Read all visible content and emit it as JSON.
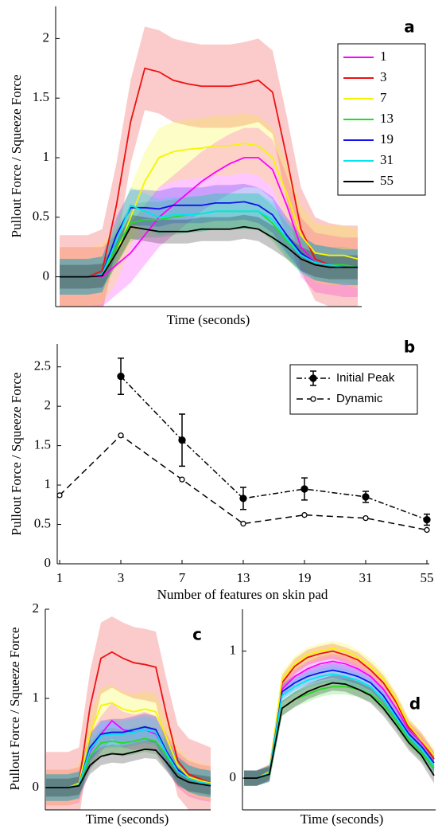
{
  "chart_data": [
    {
      "type": "timeseries",
      "label": "a",
      "xlabel": "Time (seconds)",
      "ylabel": "Pullout Force / Squeeze Force",
      "ylim": [
        -0.25,
        2.27
      ],
      "yticks": [
        0,
        0.5,
        1,
        1.5,
        2
      ],
      "legend": "upper right",
      "series": [
        {
          "name": "1",
          "color": "#ff00ff",
          "error": 0.25,
          "values": [
            0,
            0,
            0,
            0,
            0.1,
            0.2,
            0.35,
            0.5,
            0.6,
            0.7,
            0.8,
            0.88,
            0.95,
            1.0,
            1.0,
            0.9,
            0.6,
            0.25,
            0.12,
            0.1,
            0.08,
            0.08
          ]
        },
        {
          "name": "3",
          "color": "#ee1111",
          "error": 0.35,
          "values": [
            0,
            0,
            0,
            0.05,
            0.6,
            1.3,
            1.75,
            1.72,
            1.65,
            1.62,
            1.6,
            1.6,
            1.6,
            1.62,
            1.65,
            1.55,
            1.0,
            0.4,
            0.15,
            0.1,
            0.08,
            0.08
          ]
        },
        {
          "name": "7",
          "color": "#f5f500",
          "error": 0.25,
          "values": [
            0,
            0,
            0,
            0.02,
            0.2,
            0.5,
            0.8,
            1.0,
            1.05,
            1.07,
            1.08,
            1.1,
            1.1,
            1.12,
            1.1,
            1.0,
            0.7,
            0.35,
            0.2,
            0.18,
            0.18,
            0.15
          ]
        },
        {
          "name": "13",
          "color": "#22dd22",
          "error": 0.15,
          "values": [
            0,
            0,
            0,
            0.02,
            0.25,
            0.45,
            0.48,
            0.48,
            0.5,
            0.52,
            0.53,
            0.55,
            0.55,
            0.55,
            0.55,
            0.45,
            0.3,
            0.18,
            0.12,
            0.1,
            0.1,
            0.08
          ]
        },
        {
          "name": "19",
          "color": "#1111ee",
          "error": 0.15,
          "values": [
            0,
            0,
            0,
            0.02,
            0.35,
            0.58,
            0.58,
            0.57,
            0.6,
            0.6,
            0.6,
            0.62,
            0.62,
            0.63,
            0.6,
            0.52,
            0.35,
            0.2,
            0.12,
            0.1,
            0.08,
            0.08
          ]
        },
        {
          "name": "31",
          "color": "#00e5ee",
          "error": 0.15,
          "values": [
            0,
            0,
            0,
            0.02,
            0.3,
            0.6,
            0.55,
            0.5,
            0.52,
            0.52,
            0.53,
            0.55,
            0.55,
            0.55,
            0.55,
            0.48,
            0.32,
            0.18,
            0.12,
            0.1,
            0.08,
            0.08
          ]
        },
        {
          "name": "55",
          "color": "#000000",
          "error": 0.1,
          "values": [
            0,
            0,
            0,
            0.01,
            0.2,
            0.42,
            0.4,
            0.38,
            0.38,
            0.38,
            0.4,
            0.4,
            0.4,
            0.42,
            0.4,
            0.33,
            0.25,
            0.15,
            0.1,
            0.08,
            0.08,
            0.08
          ]
        }
      ]
    },
    {
      "type": "errorline",
      "label": "b",
      "xlabel": "Number of features on skin pad",
      "ylabel": "Pullout Force / Squeeze Force",
      "categories": [
        "1",
        "3",
        "7",
        "13",
        "19",
        "31",
        "55"
      ],
      "ylim": [
        0,
        2.79
      ],
      "yticks": [
        0,
        0.5,
        1,
        1.5,
        2,
        2.5
      ],
      "legend": "upper right",
      "series": [
        {
          "name": "Initial Peak",
          "color": "#000000",
          "line_style": "dash-dot",
          "marker": "filled",
          "values": [
            null,
            2.38,
            1.57,
            0.83,
            0.95,
            0.85,
            0.56
          ],
          "errors": [
            null,
            0.23,
            0.33,
            0.14,
            0.14,
            0.07,
            0.07
          ]
        },
        {
          "name": "Dynamic",
          "color": "#000000",
          "line_style": "dashed",
          "marker": "open",
          "values": [
            0.87,
            1.63,
            1.07,
            0.51,
            0.62,
            0.58,
            0.43
          ]
        }
      ]
    },
    {
      "type": "timeseries",
      "label": "c",
      "xlabel": "Time (seconds)",
      "ylabel": "Pullout Force / Squeeze Force",
      "ylim": [
        -0.25,
        2.0
      ],
      "yticks": [
        0,
        1,
        2
      ],
      "series": [
        {
          "color": "#ff00ff",
          "error": 0.2,
          "values": [
            0,
            0,
            0,
            0.03,
            0.4,
            0.6,
            0.75,
            0.65,
            0.62,
            0.65,
            0.6,
            0.4,
            0.2,
            0.1,
            0.06,
            0.04
          ]
        },
        {
          "color": "#ee1111",
          "error": 0.4,
          "values": [
            0,
            0,
            0,
            0.05,
            0.9,
            1.45,
            1.52,
            1.45,
            1.4,
            1.38,
            1.35,
            0.8,
            0.3,
            0.15,
            0.1,
            0.05
          ]
        },
        {
          "color": "#f5f500",
          "error": 0.2,
          "values": [
            0,
            0,
            0,
            0.05,
            0.6,
            0.92,
            0.95,
            0.88,
            0.85,
            0.88,
            0.85,
            0.55,
            0.25,
            0.12,
            0.08,
            0.05
          ]
        },
        {
          "color": "#22dd22",
          "error": 0.15,
          "values": [
            0,
            0,
            0,
            0.03,
            0.35,
            0.5,
            0.52,
            0.5,
            0.52,
            0.55,
            0.52,
            0.35,
            0.18,
            0.1,
            0.06,
            0.04
          ]
        },
        {
          "color": "#1111ee",
          "error": 0.15,
          "values": [
            0,
            0,
            0,
            0.03,
            0.45,
            0.6,
            0.62,
            0.62,
            0.65,
            0.68,
            0.65,
            0.4,
            0.2,
            0.1,
            0.06,
            0.04
          ]
        },
        {
          "color": "#00e5ee",
          "error": 0.15,
          "values": [
            0,
            0,
            0,
            0.03,
            0.42,
            0.58,
            0.6,
            0.6,
            0.62,
            0.65,
            0.62,
            0.38,
            0.18,
            0.1,
            0.06,
            0.04
          ]
        },
        {
          "color": "#000000",
          "error": 0.1,
          "values": [
            0,
            0,
            0,
            0.02,
            0.25,
            0.35,
            0.38,
            0.37,
            0.4,
            0.43,
            0.42,
            0.28,
            0.12,
            0.06,
            0.04,
            0.02
          ]
        }
      ]
    },
    {
      "type": "timeseries",
      "label": "d",
      "xlabel": "Time (seconds)",
      "ylim": [
        -0.25,
        1.33
      ],
      "yticks": [
        0,
        1
      ],
      "series": [
        {
          "color": "#ff00ff",
          "error": 0.06,
          "values": [
            0,
            0,
            0.04,
            0.7,
            0.8,
            0.86,
            0.9,
            0.92,
            0.9,
            0.86,
            0.8,
            0.7,
            0.55,
            0.38,
            0.28,
            0.15
          ]
        },
        {
          "color": "#ee1111",
          "error": 0.06,
          "values": [
            0,
            0,
            0.05,
            0.75,
            0.88,
            0.95,
            0.98,
            1.0,
            0.97,
            0.93,
            0.85,
            0.75,
            0.6,
            0.4,
            0.3,
            0.15
          ]
        },
        {
          "color": "#f5f500",
          "error": 0.06,
          "values": [
            0,
            0,
            0.05,
            0.78,
            0.9,
            0.97,
            1.0,
            1.02,
            1.0,
            0.95,
            0.88,
            0.78,
            0.62,
            0.42,
            0.3,
            0.18
          ]
        },
        {
          "color": "#22dd22",
          "error": 0.06,
          "values": [
            0,
            0,
            0.03,
            0.55,
            0.62,
            0.66,
            0.7,
            0.72,
            0.72,
            0.7,
            0.66,
            0.58,
            0.45,
            0.3,
            0.2,
            0.08
          ]
        },
        {
          "color": "#1111ee",
          "error": 0.06,
          "values": [
            0,
            0,
            0.04,
            0.68,
            0.75,
            0.8,
            0.83,
            0.85,
            0.83,
            0.8,
            0.75,
            0.65,
            0.5,
            0.35,
            0.25,
            0.12
          ]
        },
        {
          "color": "#00e5ee",
          "error": 0.06,
          "values": [
            0,
            0,
            0.04,
            0.65,
            0.72,
            0.77,
            0.8,
            0.82,
            0.8,
            0.77,
            0.72,
            0.62,
            0.48,
            0.33,
            0.23,
            0.1
          ]
        },
        {
          "color": "#000000",
          "error": 0.06,
          "values": [
            0,
            0,
            0.03,
            0.55,
            0.62,
            0.68,
            0.72,
            0.75,
            0.74,
            0.7,
            0.65,
            0.55,
            0.42,
            0.28,
            0.18,
            0.02
          ]
        }
      ]
    }
  ]
}
